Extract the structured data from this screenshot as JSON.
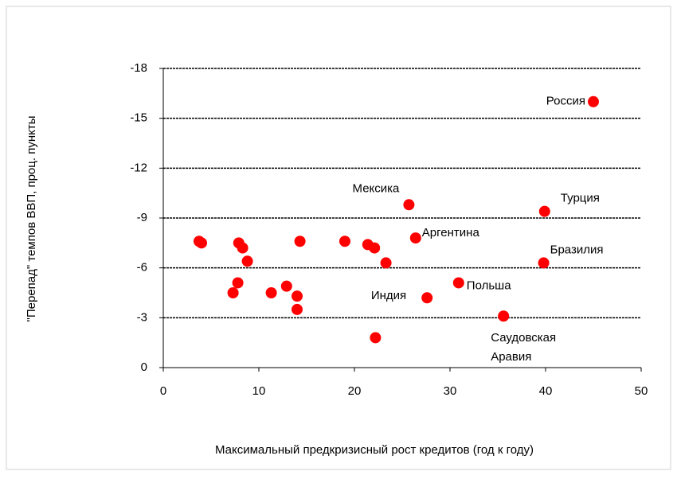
{
  "chart_data": {
    "type": "scatter",
    "x_label": "Максимальный предкризисный рост кредитов (год к году)",
    "y_label": "\"Перепад\" темпов ВВП, проц. пункты",
    "x": [
      45,
      25.7,
      39.9,
      26.4,
      39.8,
      30.9,
      27.6,
      35.6,
      3.75,
      4.0,
      7.9,
      8.3,
      8.8,
      7.8,
      7.3,
      11.3,
      12.9,
      14.0,
      14.0,
      14.3,
      19.0,
      21.4,
      22.1,
      23.3,
      22.2
    ],
    "values": [
      -16.0,
      -9.8,
      -9.4,
      -7.8,
      -6.3,
      -5.1,
      -4.2,
      -3.1,
      -7.6,
      -7.5,
      -7.5,
      -7.2,
      -6.4,
      -5.1,
      -4.5,
      -4.5,
      -4.9,
      -4.3,
      -3.5,
      -7.6,
      -7.6,
      -7.4,
      -7.2,
      -6.3,
      -1.8
    ],
    "labels": [
      "Россия",
      "Мексика",
      "Турция",
      "Аргентина",
      "Бразилия",
      "Польша",
      "Индия",
      [
        "Саудовская",
        "Аравия"
      ],
      null,
      null,
      null,
      null,
      null,
      null,
      null,
      null,
      null,
      null,
      null,
      null,
      null,
      null,
      null,
      null,
      null
    ],
    "color": "#ff0000",
    "xlim": [
      0,
      50
    ],
    "xticks": [
      0,
      10,
      20,
      30,
      40,
      50
    ],
    "ylim": [
      0,
      -18
    ],
    "yticks": [
      0,
      -3,
      -6,
      -9,
      -12,
      -15,
      -18
    ],
    "grid": true
  }
}
